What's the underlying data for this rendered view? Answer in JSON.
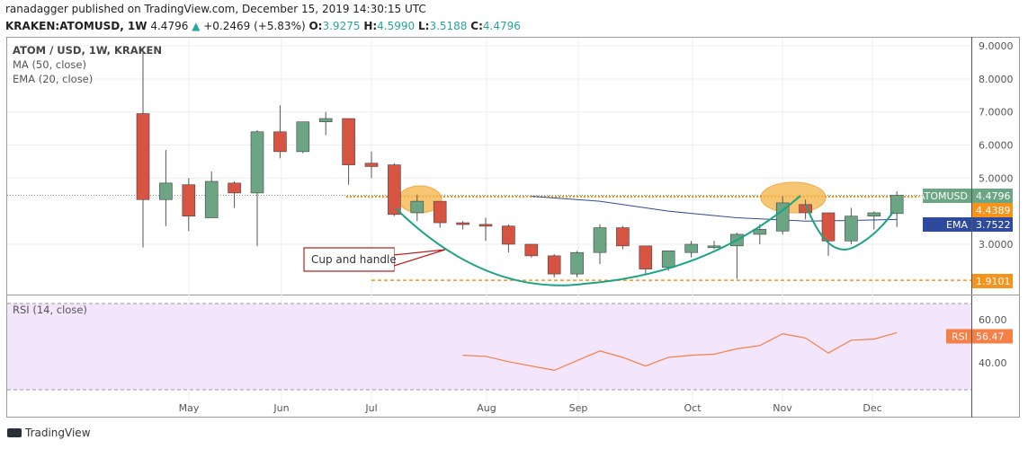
{
  "header": {
    "line1": "ranadagger published on TradingView.com, December 15, 2019 14:30:15 UTC",
    "symbol": "KRAKEN:ATOMUSD, 1W",
    "last": "4.4796",
    "arrow": "▲",
    "change": "+0.2469 (+5.83%)",
    "o_label": "O:",
    "o": "3.9275",
    "h_label": "H:",
    "h": "4.5990",
    "l_label": "L:",
    "l": "3.5188",
    "c_label": "C:",
    "c": "4.4796"
  },
  "legend": {
    "title": "ATOM / USD, 1W, KRAKEN",
    "ma": "MA (50, close)",
    "ema": "EMA (20, close)",
    "rsi": "RSI (14, close)"
  },
  "footer": {
    "brand": "TradingView"
  },
  "colors": {
    "up": "#6ba583",
    "down": "#d75442",
    "ema": "#2f4a9c",
    "cup": "#1aa384",
    "orange": "#f7931a",
    "rsi": "#f57f45"
  },
  "chart_data": [
    {
      "type": "candlestick",
      "title": "ATOM / USD, 1W, KRAKEN",
      "ylim": [
        1.6,
        9.2
      ],
      "yticks": [
        "9.0000",
        "8.0000",
        "7.0000",
        "6.0000",
        "5.0000",
        "3.0000"
      ],
      "xticks": [
        "May",
        "Jun",
        "Jul",
        "Aug",
        "Sep",
        "Oct",
        "Nov",
        "Dec"
      ],
      "ohlc": [
        [
          6.95,
          8.9,
          2.9,
          4.35
        ],
        [
          4.35,
          5.85,
          3.55,
          4.85
        ],
        [
          4.8,
          5.0,
          3.4,
          3.85
        ],
        [
          3.8,
          5.2,
          3.8,
          4.9
        ],
        [
          4.85,
          4.9,
          4.1,
          4.55
        ],
        [
          4.55,
          6.45,
          2.95,
          6.4
        ],
        [
          6.4,
          7.2,
          5.6,
          5.8
        ],
        [
          5.8,
          6.7,
          5.75,
          6.7
        ],
        [
          6.7,
          7.0,
          6.3,
          6.8
        ],
        [
          6.8,
          6.8,
          4.8,
          5.4
        ],
        [
          5.45,
          5.8,
          5.0,
          5.35
        ],
        [
          5.4,
          5.45,
          3.85,
          3.9
        ],
        [
          3.95,
          4.5,
          3.7,
          4.3
        ],
        [
          4.3,
          4.3,
          3.5,
          3.65
        ],
        [
          3.65,
          3.7,
          3.45,
          3.6
        ],
        [
          3.6,
          3.8,
          3.1,
          3.55
        ],
        [
          3.55,
          3.6,
          2.75,
          3.0
        ],
        [
          3.0,
          3.0,
          2.6,
          2.65
        ],
        [
          2.65,
          2.7,
          2.0,
          2.1
        ],
        [
          2.1,
          2.8,
          2.0,
          2.75
        ],
        [
          2.75,
          3.6,
          2.4,
          3.5
        ],
        [
          3.5,
          3.55,
          2.85,
          2.95
        ],
        [
          2.95,
          2.95,
          2.1,
          2.25
        ],
        [
          2.3,
          2.8,
          2.2,
          2.8
        ],
        [
          2.75,
          3.1,
          2.6,
          3.0
        ],
        [
          2.9,
          3.1,
          2.85,
          2.95
        ],
        [
          2.95,
          3.35,
          1.95,
          3.3
        ],
        [
          3.3,
          3.6,
          3.0,
          3.45
        ],
        [
          3.4,
          4.45,
          3.3,
          4.25
        ],
        [
          4.2,
          4.35,
          3.75,
          3.95
        ],
        [
          3.95,
          3.95,
          2.65,
          3.1
        ],
        [
          3.1,
          4.1,
          3.0,
          3.85
        ],
        [
          3.85,
          4.0,
          3.45,
          3.95
        ],
        [
          3.9275,
          4.599,
          3.5188,
          4.4796
        ]
      ],
      "ema": [
        [
          17,
          4.45
        ],
        [
          20,
          4.3
        ],
        [
          23,
          4.0
        ],
        [
          26,
          3.8
        ],
        [
          29,
          3.7
        ],
        [
          31,
          3.72
        ],
        [
          33,
          3.75
        ]
      ],
      "labels": {
        "price_tag": "ATOMUSD",
        "price": "4.4796",
        "resistance": "4.4389",
        "ema_tag": "EMA",
        "ema": "3.7522",
        "support": "1.9101"
      },
      "annotation": "Cup and handle"
    },
    {
      "type": "line",
      "title": "RSI (14, close)",
      "ylim": [
        25,
        75
      ],
      "yticks": [
        "60.00",
        "40.00"
      ],
      "bands": [
        70,
        30
      ],
      "x": [
        14,
        15,
        16,
        18,
        20,
        21,
        22,
        23,
        24,
        25,
        26,
        27,
        28,
        29,
        30,
        31,
        32,
        33
      ],
      "values": [
        46,
        45.5,
        43,
        39,
        48,
        45,
        41,
        45,
        46,
        46.5,
        49,
        50.5,
        56,
        54,
        47,
        53,
        53.5,
        56.47
      ],
      "tag": "RSI",
      "last": "56.47"
    }
  ]
}
